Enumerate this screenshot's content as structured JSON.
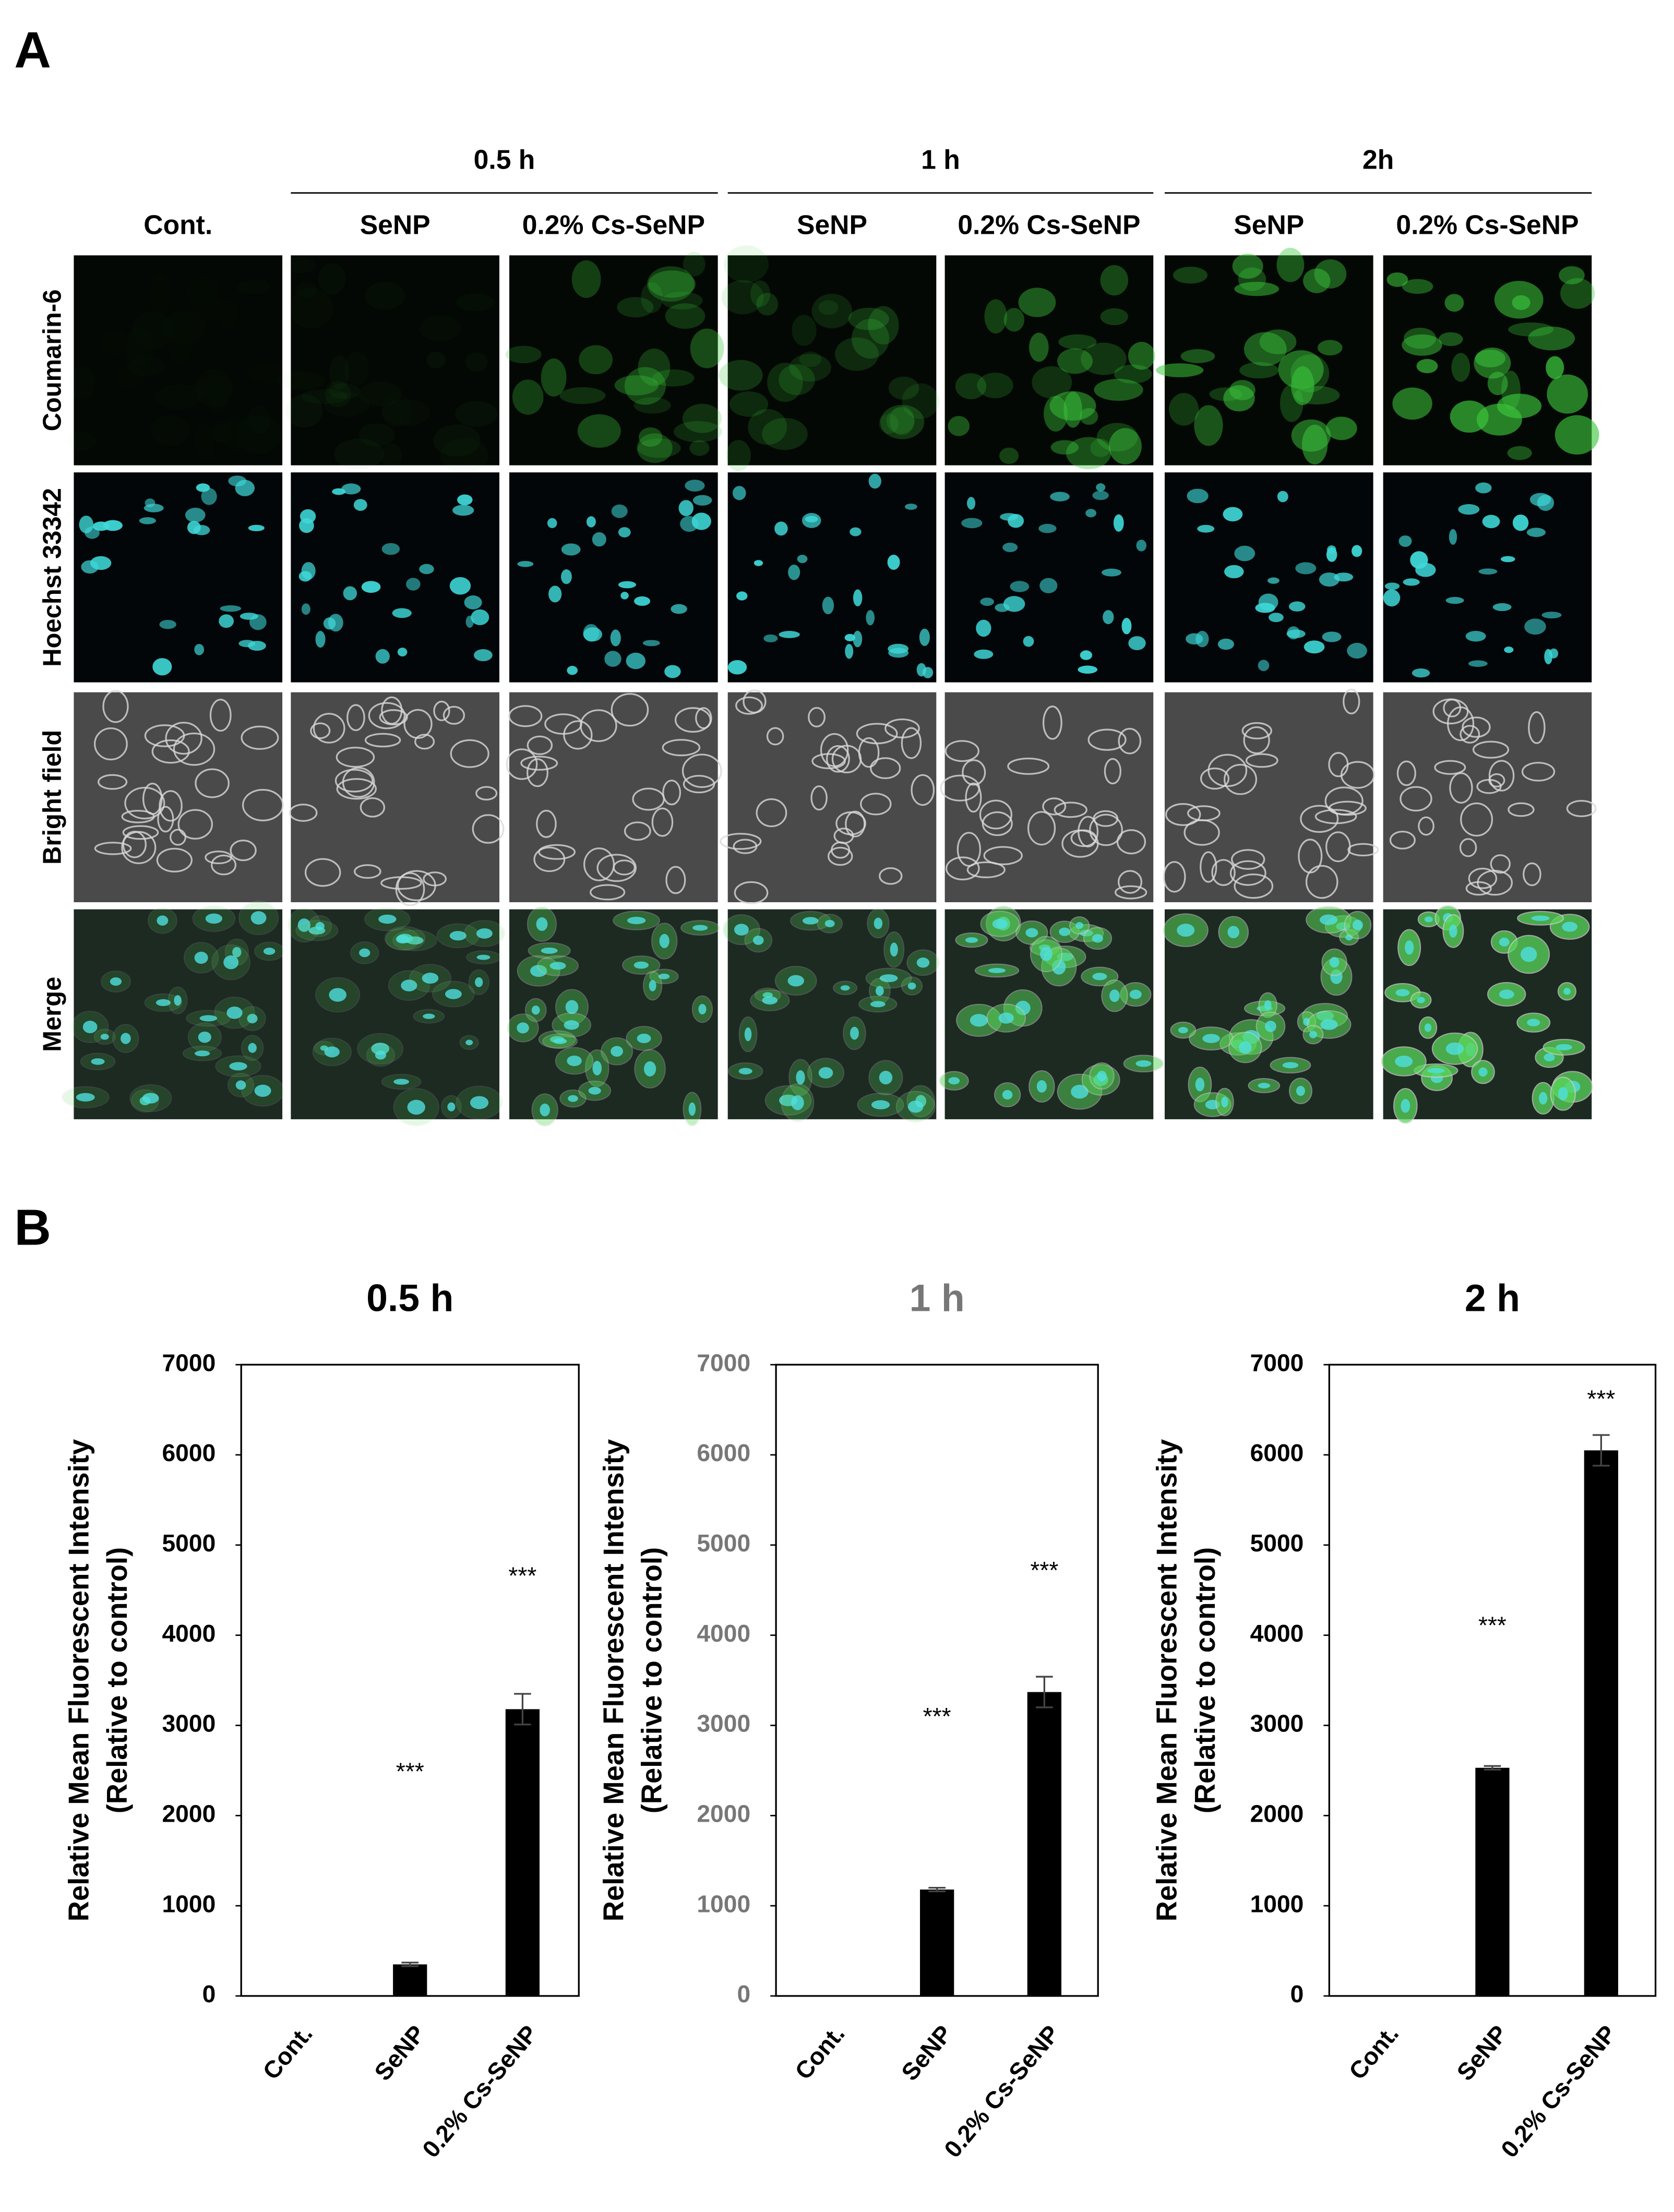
{
  "panel_a": {
    "label": "A",
    "time_groups": [
      {
        "label": "0.5 h",
        "columns": [
          1,
          2
        ]
      },
      {
        "label": "1 h",
        "columns": [
          3,
          4
        ]
      },
      {
        "label": "2h",
        "columns": [
          5,
          6
        ]
      }
    ],
    "columns": [
      "Cont.",
      "SeNP",
      "0.2% Cs-SeNP",
      "SeNP",
      "0.2% Cs-SeNP",
      "SeNP",
      "0.2% Cs-SeNP"
    ],
    "rows": [
      "Coumarin-6",
      "Hoechst 33342",
      "Bright field",
      "Merge"
    ]
  },
  "panel_b": {
    "label": "B"
  },
  "chart_data": [
    {
      "type": "bar",
      "title": "0.5 h",
      "title_color": "#000000",
      "ylabel": [
        "Relative Mean Fluorescent Intensity",
        "(Relative to control)"
      ],
      "categories": [
        "Cont.",
        "SeNP",
        "0.2% Cs-SeNP"
      ],
      "values": [
        1,
        350,
        3180
      ],
      "errors": [
        null,
        20,
        170
      ],
      "color": "#000000",
      "ylim": [
        0,
        7000
      ],
      "yticks": [
        0,
        1000,
        2000,
        3000,
        4000,
        5000,
        6000,
        7000
      ],
      "annotations": [
        {
          "text": "***",
          "category": 1,
          "y": 2470
        },
        {
          "text": "***",
          "category": 2,
          "y": 4640
        }
      ]
    },
    {
      "type": "bar",
      "title": "1 h",
      "title_color": "#777777",
      "ylabel": [
        "Relative Mean Fluorescent Intensity",
        "(Relative to control)"
      ],
      "categories": [
        "Cont.",
        "SeNP",
        "0.2% Cs-SeNP"
      ],
      "values": [
        1,
        1180,
        3370
      ],
      "errors": [
        null,
        20,
        170
      ],
      "color": "#000000",
      "ylim": [
        0,
        7000
      ],
      "yticks": [
        0,
        1000,
        2000,
        3000,
        4000,
        5000,
        6000,
        7000
      ],
      "annotations": [
        {
          "text": "***",
          "category": 1,
          "y": 3080
        },
        {
          "text": "***",
          "category": 2,
          "y": 4700
        }
      ]
    },
    {
      "type": "bar",
      "title": "2 h",
      "title_color": "#000000",
      "ylabel": [
        "Relative Mean Fluorescent Intensity",
        "(Relative to control)"
      ],
      "categories": [
        "Cont.",
        "SeNP",
        "0.2% Cs-SeNP"
      ],
      "values": [
        1,
        2530,
        6050
      ],
      "errors": [
        null,
        20,
        170
      ],
      "color": "#000000",
      "ylim": [
        0,
        7000
      ],
      "yticks": [
        0,
        1000,
        2000,
        3000,
        4000,
        5000,
        6000,
        7000
      ],
      "annotations": [
        {
          "text": "***",
          "category": 1,
          "y": 4090
        },
        {
          "text": "***",
          "category": 2,
          "y": 6600
        }
      ]
    }
  ]
}
